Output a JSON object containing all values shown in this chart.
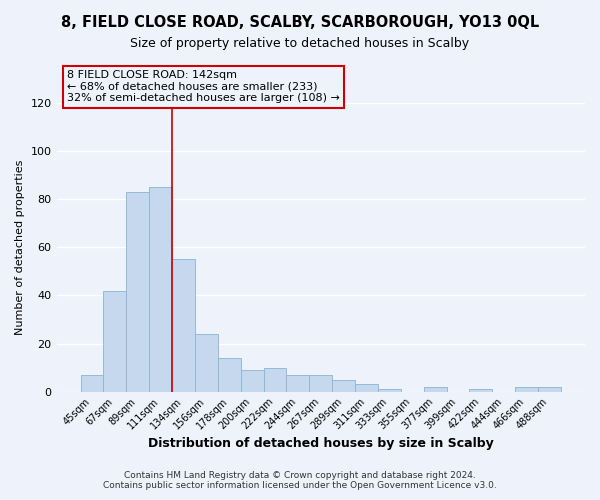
{
  "title": "8, FIELD CLOSE ROAD, SCALBY, SCARBOROUGH, YO13 0QL",
  "subtitle": "Size of property relative to detached houses in Scalby",
  "xlabel": "Distribution of detached houses by size in Scalby",
  "ylabel": "Number of detached properties",
  "bar_labels": [
    "45sqm",
    "67sqm",
    "89sqm",
    "111sqm",
    "134sqm",
    "156sqm",
    "178sqm",
    "200sqm",
    "222sqm",
    "244sqm",
    "267sqm",
    "289sqm",
    "311sqm",
    "333sqm",
    "355sqm",
    "377sqm",
    "399sqm",
    "422sqm",
    "444sqm",
    "466sqm",
    "488sqm"
  ],
  "bar_values": [
    7,
    42,
    83,
    85,
    55,
    24,
    14,
    9,
    10,
    7,
    7,
    5,
    3,
    1,
    0,
    2,
    0,
    1,
    0,
    2,
    2
  ],
  "bar_color": "#c5d8ed",
  "bar_edge_color": "#8ab4d4",
  "vline_color": "#cc0000",
  "annotation_text": "8 FIELD CLOSE ROAD: 142sqm\n← 68% of detached houses are smaller (233)\n32% of semi-detached houses are larger (108) →",
  "annotation_box_edgecolor": "#cc0000",
  "ylim": [
    0,
    120
  ],
  "yticks": [
    0,
    20,
    40,
    60,
    80,
    100,
    120
  ],
  "footer_text": "Contains HM Land Registry data © Crown copyright and database right 2024.\nContains public sector information licensed under the Open Government Licence v3.0.",
  "background_color": "#eef2fb",
  "grid_color": "#ffffff"
}
